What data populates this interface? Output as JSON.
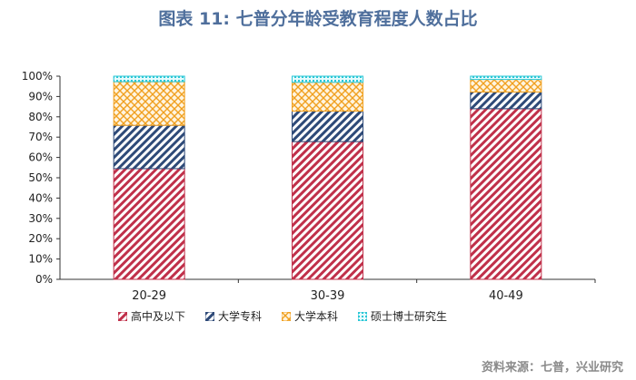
{
  "title": "图表 11: 七普分年龄受教育程度人数占比",
  "source": "资料来源：七普，兴业研究",
  "colors": {
    "title": "#4f6f9c",
    "high_school": "#c0304a",
    "college": "#2e4a78",
    "bachelor": "#f0a020",
    "graduate": "#29c7d6"
  },
  "chart_data": {
    "type": "bar",
    "stacked": true,
    "categories": [
      "20-29",
      "30-39",
      "40-49"
    ],
    "series": [
      {
        "name": "高中及以下",
        "values": [
          54.5,
          67.8,
          84.0
        ],
        "color": "#c0304a",
        "pattern": "diagonal"
      },
      {
        "name": "大学专科",
        "values": [
          21.3,
          15.0,
          8.2
        ],
        "color": "#2e4a78",
        "pattern": "diagonal"
      },
      {
        "name": "大学本科",
        "values": [
          21.5,
          14.2,
          6.2
        ],
        "color": "#f0a020",
        "pattern": "crosshatch"
      },
      {
        "name": "硕士博士研究生",
        "values": [
          2.7,
          3.0,
          1.6
        ],
        "color": "#29c7d6",
        "pattern": "dots"
      }
    ],
    "y_ticks": [
      "0%",
      "10%",
      "20%",
      "30%",
      "40%",
      "50%",
      "60%",
      "70%",
      "80%",
      "90%",
      "100%"
    ],
    "ylim": [
      0,
      100
    ],
    "grid": false,
    "legend_position": "bottom"
  }
}
